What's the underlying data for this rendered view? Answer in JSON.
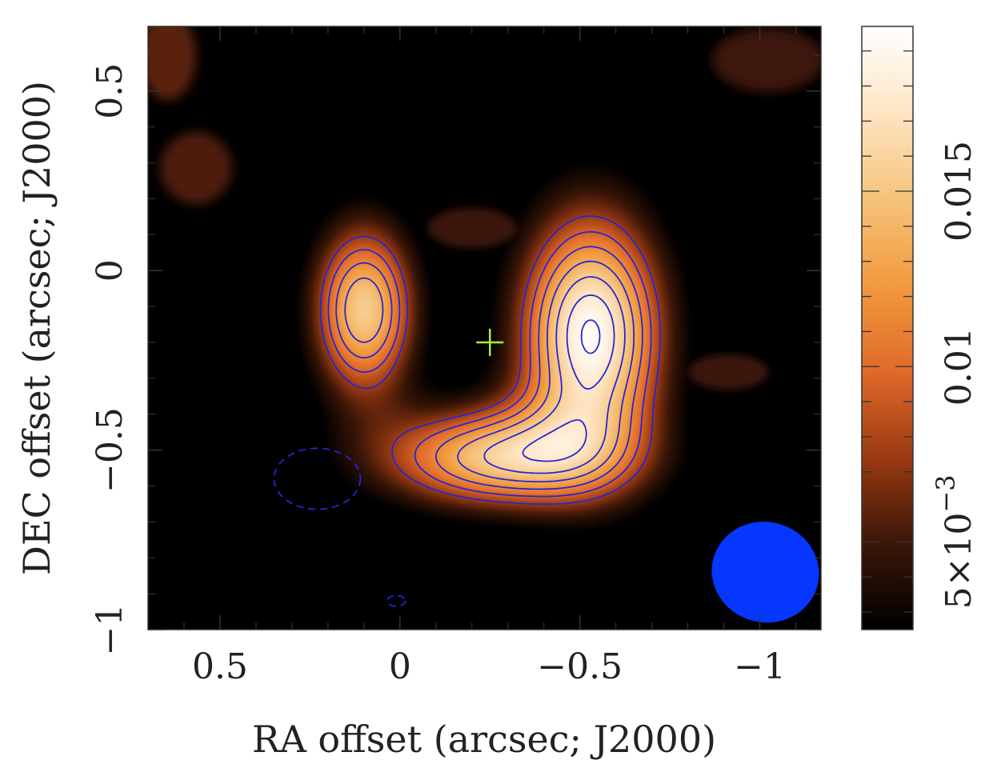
{
  "chart_data": {
    "type": "heatmap",
    "title": "",
    "xlabel": "RA offset (arcsec; J2000)",
    "ylabel": "DEC offset (arcsec; J2000)",
    "xlim": [
      0.7,
      -1.17
    ],
    "ylim": [
      -1.0,
      0.68
    ],
    "x_ticks": [
      {
        "value": 0.5,
        "label": "0.5"
      },
      {
        "value": 0,
        "label": "0"
      },
      {
        "value": -0.5,
        "label": "−0.5"
      },
      {
        "value": -1,
        "label": "−1"
      }
    ],
    "y_ticks": [
      {
        "value": 0.5,
        "label": "0.5"
      },
      {
        "value": 0,
        "label": "0"
      },
      {
        "value": -0.5,
        "label": "−0.5"
      },
      {
        "value": -1,
        "label": "−1"
      }
    ],
    "colorbar": {
      "range": [
        0.0025,
        0.0197
      ],
      "ticks": [
        {
          "value": 0.005,
          "label": "5×10",
          "exponent": "−3"
        },
        {
          "value": 0.01,
          "label": "0.01"
        },
        {
          "value": 0.015,
          "label": "0.015"
        }
      ],
      "minor_step": 0.001,
      "colormap": [
        "#000000",
        "#3a1607",
        "#9a3a12",
        "#e06a2a",
        "#f29a3e",
        "#f6c37c",
        "#fde4c2",
        "#ffffff"
      ]
    },
    "components": [
      {
        "name": "left arc",
        "x": 0.1,
        "y": -0.11,
        "peak": 0.0155,
        "sx": 0.1,
        "sy": 0.17
      },
      {
        "name": "right arc",
        "x": -0.53,
        "y": -0.18,
        "peak": 0.0195,
        "sx": 0.14,
        "sy": 0.24
      },
      {
        "name": "bottom bridge",
        "x": -0.28,
        "y": -0.52,
        "peak": 0.015,
        "sx": 0.24,
        "sy": 0.1
      }
    ],
    "contour_levels": [
      0.0075,
      0.0095,
      0.0115,
      0.0135,
      0.0155,
      0.0175,
      0.0192
    ],
    "contour_color": "#2626d6",
    "negative_contours": [
      {
        "x": 0.23,
        "y": -0.58,
        "rx": 0.12,
        "ry": 0.085
      },
      {
        "x": 0.01,
        "y": -0.92,
        "rx": 0.025,
        "ry": 0.015
      }
    ],
    "center_marker": {
      "x": -0.25,
      "y": -0.2,
      "color": "#a8f040"
    },
    "beam": {
      "x": -1.0,
      "y": -0.84,
      "major": 0.16,
      "minor": 0.14,
      "pa": 0,
      "color": "#0537ff"
    }
  }
}
